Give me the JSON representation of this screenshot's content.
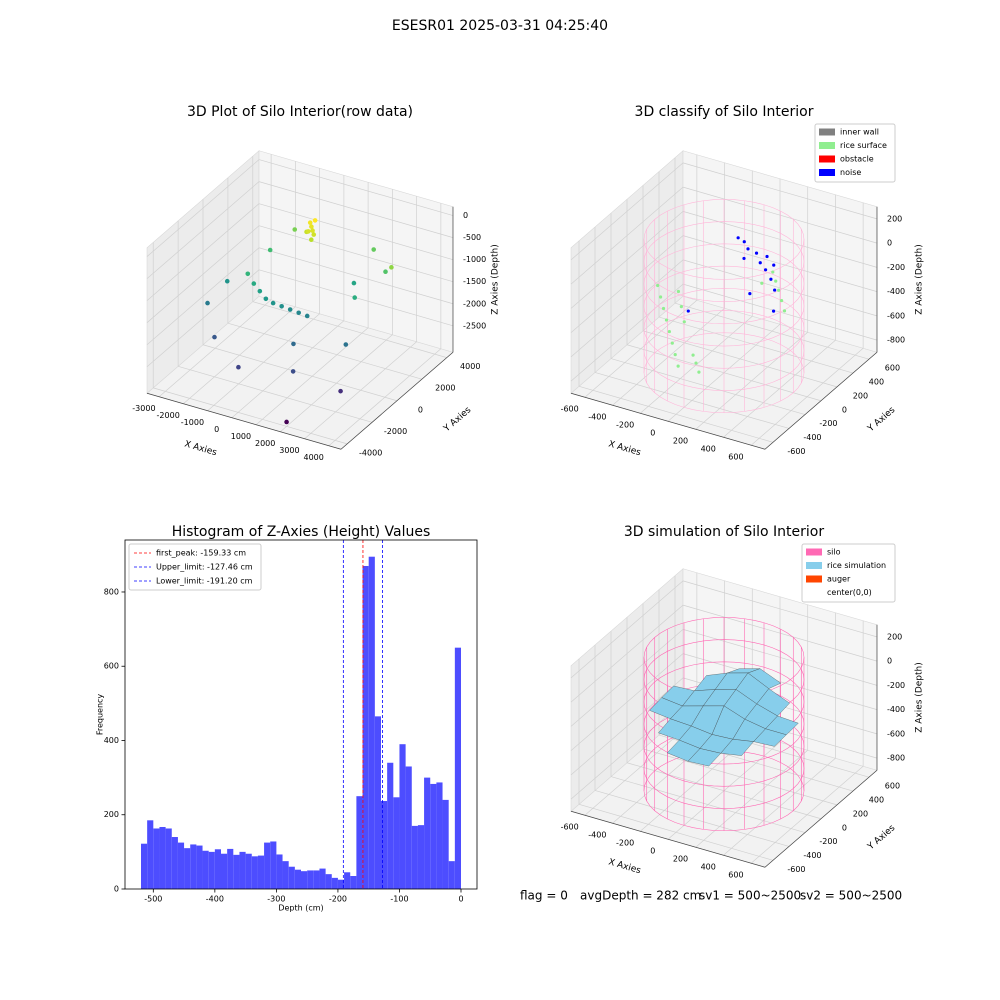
{
  "title": "ESESR01 2025-03-31 04:25:40",
  "footer": [
    "flag = 0",
    "avgDepth = 282 cm",
    "sv1 = 500~2500",
    "sv2 = 500~2500"
  ],
  "chart_data": [
    {
      "type": "scatter3d",
      "title": "3D Plot of Silo Interior(row data)",
      "xlabel": "X Axies",
      "ylabel": "Y Axies",
      "zlabel": "Z Axies (Depth)",
      "xlim": [
        -3500,
        4500
      ],
      "ylim": [
        -4500,
        4500
      ],
      "zlim": [
        -3100,
        200
      ],
      "xticks": [
        -3000,
        -2000,
        -1000,
        0,
        1000,
        2000,
        3000,
        4000
      ],
      "yticks": [
        -4000,
        -2000,
        0,
        2000,
        4000
      ],
      "zticks": [
        -2500,
        -2000,
        -1500,
        -1000,
        -500,
        0
      ],
      "colormap": "viridis",
      "series": [
        {
          "x": [
            200,
            300,
            100,
            400,
            0,
            250,
            350,
            150,
            -1500,
            -1200,
            -900,
            -600,
            -300,
            0,
            300,
            600,
            900,
            -2500,
            -2800,
            -2000,
            -500,
            1500,
            2500,
            3000,
            3500,
            2000,
            -1000,
            1800,
            2800,
            1000,
            -1500,
            3200,
            2000
          ],
          "y": [
            1500,
            1400,
            1600,
            1300,
            1500,
            1700,
            1200,
            1350,
            -300,
            -400,
            -500,
            -600,
            -600,
            -500,
            -400,
            -300,
            -200,
            0,
            -1000,
            -2000,
            -3000,
            -2500,
            500,
            2000,
            1500,
            3000,
            2500,
            1800,
            -800,
            -1500,
            1500,
            -2000,
            -4000
          ],
          "z": [
            -200,
            -250,
            -150,
            -300,
            -350,
            -100,
            -400,
            -280,
            -1100,
            -1250,
            -1350,
            -1450,
            -1500,
            -1550,
            -1600,
            -1650,
            -1700,
            -1500,
            -1800,
            -2200,
            -2400,
            -2300,
            -1200,
            -900,
            -600,
            -800,
            -700,
            -1300,
            -1900,
            -2000,
            -1000,
            -2600,
            -3000
          ]
        }
      ]
    },
    {
      "type": "classify3d",
      "title": "3D classify of Silo Interior",
      "xlabel": "X Axies",
      "ylabel": "Y Axies",
      "zlabel": "Z Axies (Depth)",
      "xlim": [
        -700,
        700
      ],
      "ylim": [
        -700,
        700
      ],
      "zlim": [
        -900,
        300
      ],
      "xticks": [
        -600,
        -400,
        -200,
        0,
        200,
        400,
        600
      ],
      "yticks": [
        -600,
        -400,
        -200,
        0,
        200,
        400,
        600
      ],
      "zticks": [
        -800,
        -600,
        -400,
        -200,
        0,
        200
      ],
      "legend": "upper right",
      "cylinder": {
        "radius": 500,
        "z": [
          -900,
          200
        ],
        "color": "#ffb6d9"
      },
      "series": [
        {
          "name": "inner wall",
          "color": "gray",
          "x": [],
          "y": [],
          "z": []
        },
        {
          "name": "rice surface",
          "color": "lightgreen",
          "x": [
            -400,
            -350,
            -300,
            -250,
            -200,
            -150,
            -100,
            -300,
            -250,
            -200,
            200,
            250,
            300,
            350,
            150,
            100,
            -50,
            0,
            50,
            -450
          ],
          "y": [
            -100,
            -150,
            -200,
            -250,
            -300,
            -350,
            -400,
            -50,
            -100,
            -150,
            300,
            250,
            200,
            150,
            350,
            300,
            -300,
            -350,
            -400,
            -50
          ],
          "z": [
            -350,
            -400,
            -450,
            -500,
            -550,
            -600,
            -650,
            -300,
            -380,
            -460,
            -250,
            -280,
            -320,
            -360,
            -220,
            -300,
            -600,
            -620,
            -650,
            -300
          ]
        },
        {
          "name": "obstacle",
          "color": "red",
          "x": [],
          "y": [],
          "z": []
        },
        {
          "name": "noise",
          "color": "blue",
          "x": [
            0,
            50,
            100,
            150,
            -50,
            200,
            250,
            -100,
            100,
            -200,
            300,
            0,
            120,
            180
          ],
          "y": [
            300,
            320,
            280,
            260,
            340,
            240,
            200,
            350,
            150,
            -100,
            100,
            250,
            330,
            310
          ],
          "z": [
            -50,
            -80,
            -120,
            -150,
            -30,
            -200,
            -250,
            -20,
            -300,
            -400,
            -350,
            -100,
            -90,
            -130
          ]
        }
      ]
    },
    {
      "type": "histogram",
      "title": "Histogram of Z-Axies (Height) Values",
      "xlabel": "Depth (cm)",
      "ylabel": "Frequency",
      "color": "#4d4dff",
      "xlim": [
        -546,
        26
      ],
      "ylim": [
        0,
        940
      ],
      "xticks": [
        -500,
        -400,
        -300,
        -200,
        -100,
        0
      ],
      "yticks": [
        0,
        200,
        400,
        600,
        800
      ],
      "legend": "upper left",
      "bins": [
        -520,
        -510,
        -500,
        -490,
        -480,
        -470,
        -460,
        -450,
        -440,
        -430,
        -420,
        -410,
        -400,
        -390,
        -380,
        -370,
        -360,
        -350,
        -340,
        -330,
        -320,
        -310,
        -300,
        -290,
        -280,
        -270,
        -260,
        -250,
        -240,
        -230,
        -220,
        -210,
        -200,
        -190,
        -180,
        -170,
        -160,
        -150,
        -140,
        -130,
        -120,
        -110,
        -100,
        -90,
        -80,
        -70,
        -60,
        -50,
        -40,
        -30,
        -20,
        -10,
        0
      ],
      "counts": [
        122,
        185,
        163,
        167,
        163,
        140,
        125,
        110,
        120,
        117,
        103,
        100,
        107,
        95,
        108,
        92,
        100,
        95,
        88,
        90,
        125,
        128,
        93,
        75,
        60,
        52,
        48,
        50,
        50,
        55,
        40,
        30,
        25,
        45,
        35,
        250,
        870,
        895,
        465,
        237,
        340,
        247,
        390,
        330,
        170,
        172,
        300,
        283,
        287,
        240,
        75,
        650
      ],
      "lines": [
        {
          "name": "first_peak: -159.33 cm",
          "value": -159.33,
          "color": "red"
        },
        {
          "name": "Upper_limit: -127.46 cm",
          "value": -127.46,
          "color": "blue"
        },
        {
          "name": "Lower_limit: -191.20 cm",
          "value": -191.2,
          "color": "blue"
        }
      ]
    },
    {
      "type": "surface3d",
      "title": "3D simulation of Silo Interior",
      "xlabel": "X Axies",
      "ylabel": "Y Axies",
      "zlabel": "Z Axies (Depth)",
      "xlim": [
        -700,
        700
      ],
      "ylim": [
        -700,
        700
      ],
      "zlim": [
        -900,
        300
      ],
      "xticks": [
        -600,
        -400,
        -200,
        0,
        200,
        400,
        600
      ],
      "yticks": [
        -600,
        -400,
        -200,
        0,
        200,
        400,
        600
      ],
      "zticks": [
        -800,
        -600,
        -400,
        -200,
        0,
        200
      ],
      "legend": "upper right",
      "cylinder": {
        "radius": 500,
        "z": [
          -900,
          200
        ],
        "color": "hotpink"
      },
      "series": [
        {
          "name": "silo",
          "color": "hotpink"
        },
        {
          "name": "rice simulation",
          "color": "skyblue"
        },
        {
          "name": "auger",
          "color": "orangered"
        },
        {
          "name": "center(0,0)",
          "color": "white"
        }
      ],
      "surface": {
        "x": [
          -450,
          -300,
          -150,
          0,
          150,
          300,
          450
        ],
        "y": [
          -450,
          -300,
          -150,
          0,
          150,
          300,
          450
        ],
        "z": [
          [
            null,
            null,
            -380,
            -400,
            -390,
            null,
            null
          ],
          [
            null,
            -350,
            -360,
            -380,
            -370,
            -340,
            null
          ],
          [
            -300,
            -320,
            -330,
            -350,
            -340,
            -310,
            -300
          ],
          [
            -280,
            -300,
            -250,
            -200,
            -260,
            -290,
            -290
          ],
          [
            -270,
            -260,
            -200,
            -150,
            -220,
            -270,
            -280
          ],
          [
            null,
            -220,
            -150,
            -100,
            -180,
            -250,
            null
          ],
          [
            null,
            null,
            -200,
            -150,
            -220,
            null,
            null
          ]
        ]
      }
    }
  ]
}
